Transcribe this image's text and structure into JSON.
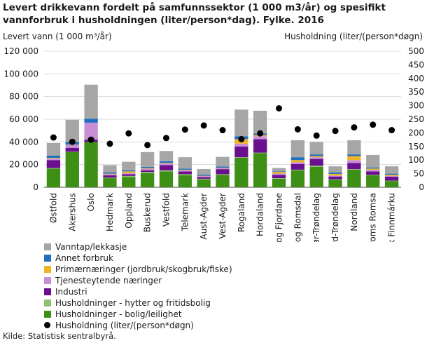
{
  "title": "Levert drikkevann fordelt på samfunnssektor (1 000 m3/år) og spesifikt vannforbruk i husholdningen (liter/person*dag). Fylke. 2016",
  "source": "Kilde: Statistisk sentralbyrå.",
  "colors": {
    "vanntap": "#a6a6a6",
    "annet": "#1f6fbf",
    "primaer": "#f0b323",
    "tjeneste": "#c98fd6",
    "industri": "#6a0f8e",
    "hytter": "#8fc26f",
    "bolig": "#3d8f16",
    "dot": "#000000"
  },
  "chart_data": {
    "type": "bar",
    "stacked": true,
    "categories": [
      "Østfold",
      "Akershus",
      "Oslo",
      "Hedmark",
      "Oppland",
      "Buskerud",
      "Vestfold",
      "Telemark",
      "Aust-Agder",
      "Vest-Agder",
      "Rogaland",
      "Hordaland",
      "Sogn og Fjordane",
      "Møre og Romsdal",
      "Sør-Trøndelag",
      "Nord-Trøndelag",
      "Nordland",
      "Troms Romsa",
      "Finnmark Finnmárku"
    ],
    "ylabel_left": "Levert vann (1 000 m³/år)",
    "ylabel_right": "Husholdning  (liter/(person*døgn)",
    "ylim_left": [
      0,
      120000
    ],
    "ylim_right": [
      0,
      500
    ],
    "yticks_left": [
      "0",
      "20 000",
      "40 000",
      "60 000",
      "80 000",
      "100 000",
      "120 000"
    ],
    "yticks_right": [
      "0",
      "50",
      "100",
      "150",
      "200",
      "250",
      "300",
      "350",
      "400",
      "450",
      "500"
    ],
    "grid": true,
    "legend_position": "bottom-left",
    "series": [
      {
        "name": "Husholdninger - bolig/leilighet",
        "key": "bolig",
        "values": [
          16500,
          31000,
          40000,
          8000,
          9000,
          12500,
          14000,
          10500,
          7000,
          11000,
          26000,
          30000,
          7500,
          15000,
          18000,
          6500,
          15500,
          10500,
          5500
        ]
      },
      {
        "name": "Husholdninger - hytter og fritidsbolig",
        "key": "hytter",
        "values": [
          500,
          300,
          0,
          500,
          1000,
          1000,
          1000,
          1000,
          500,
          500,
          500,
          500,
          500,
          500,
          1000,
          500,
          500,
          500,
          300
        ]
      },
      {
        "name": "Industri",
        "key": "industri",
        "values": [
          7000,
          3500,
          2000,
          2000,
          1500,
          1500,
          4500,
          2500,
          1500,
          4500,
          9500,
          12000,
          3000,
          5000,
          6000,
          2500,
          5500,
          3000,
          3500
        ]
      },
      {
        "name": "Tjenesteytende næringer",
        "key": "tjeneste",
        "values": [
          1500,
          2500,
          15000,
          1000,
          1000,
          1500,
          1500,
          1000,
          800,
          1000,
          2500,
          2500,
          1000,
          1500,
          1500,
          800,
          2500,
          1500,
          800
        ]
      },
      {
        "name": "Primærnæringer (jordbruk/skogbruk/fiske)",
        "key": "primaer",
        "values": [
          500,
          300,
          0,
          500,
          1500,
          500,
          500,
          500,
          300,
          300,
          4000,
          1000,
          1500,
          2000,
          1000,
          1500,
          3500,
          1000,
          1000
        ]
      },
      {
        "name": "Annet forbruk",
        "key": "annet",
        "values": [
          2000,
          2400,
          3500,
          1000,
          1000,
          1000,
          1500,
          1000,
          1000,
          1000,
          2500,
          1500,
          500,
          2500,
          1500,
          1200,
          1500,
          1000,
          900
        ]
      },
      {
        "name": "Vanntap/lekkasje",
        "key": "vanntap",
        "values": [
          11000,
          19500,
          30000,
          6500,
          7500,
          13000,
          9000,
          10000,
          5000,
          8500,
          23500,
          20000,
          3000,
          15000,
          11000,
          5500,
          12500,
          11000,
          6500
        ]
      }
    ],
    "dot_series": {
      "name": "Husholdning (liter/(person*døgn)",
      "values": [
        183,
        167,
        175,
        160,
        198,
        155,
        181,
        212,
        227,
        210,
        177,
        198,
        290,
        213,
        190,
        207,
        220,
        230,
        210
      ]
    }
  }
}
